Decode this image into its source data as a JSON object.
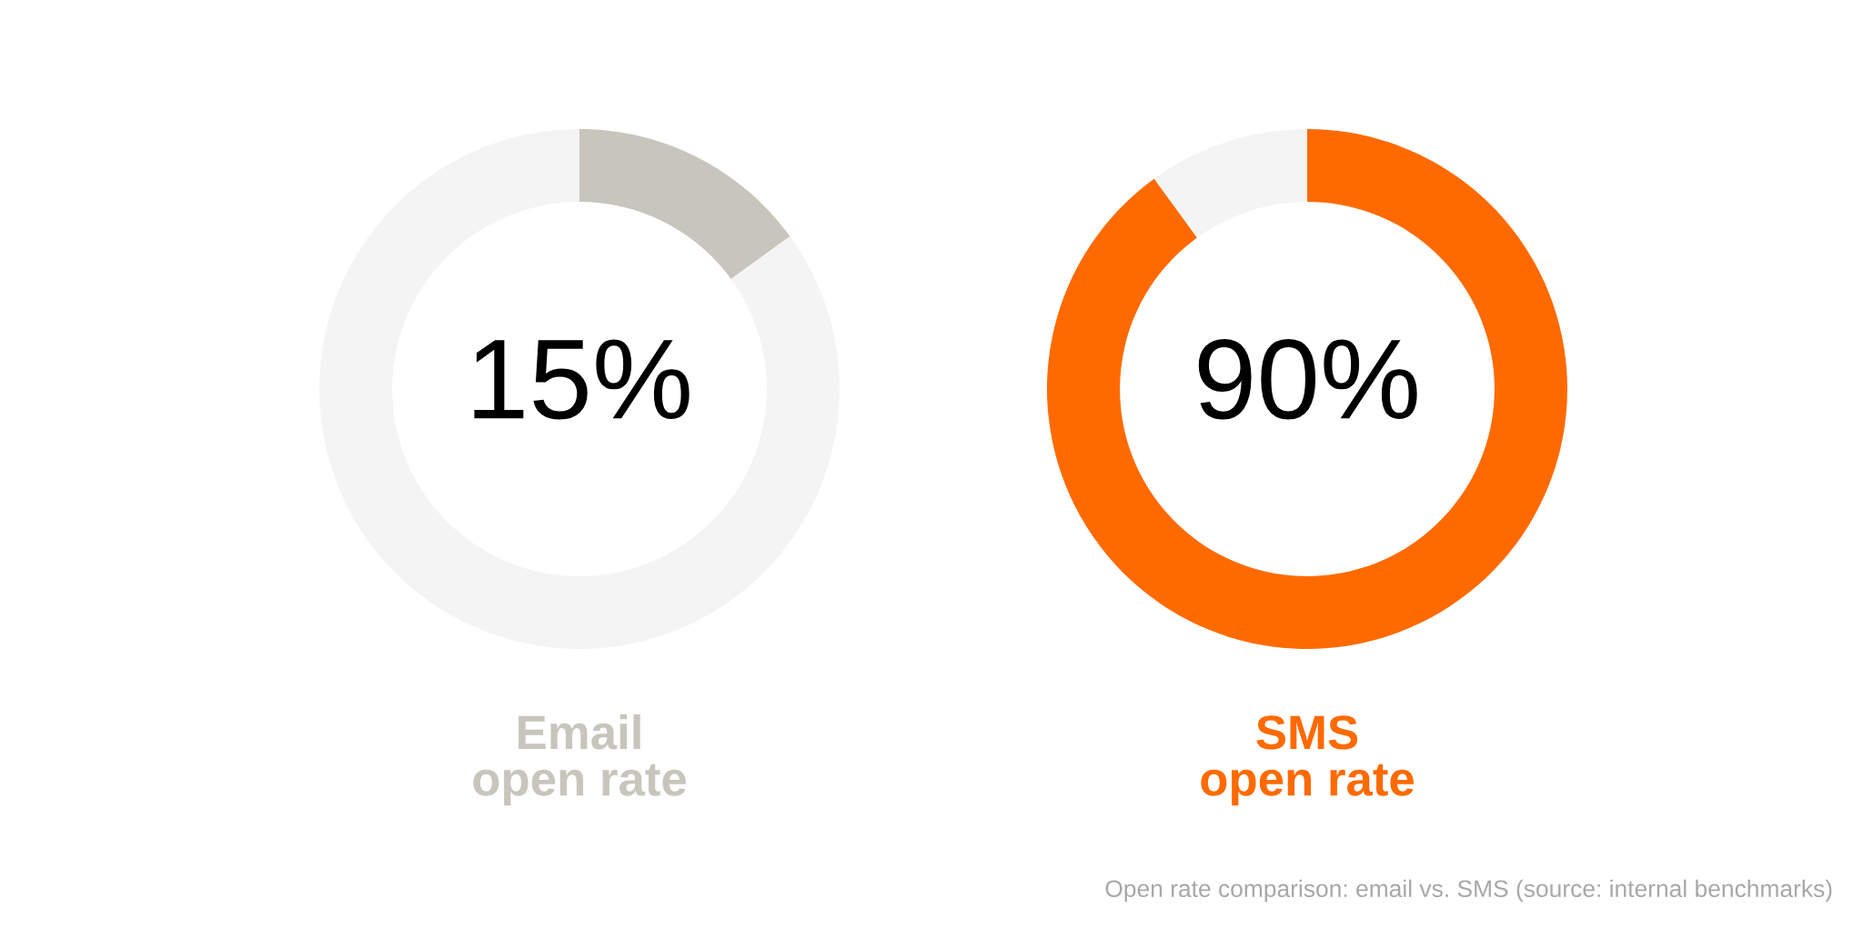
{
  "chart_data": [
    {
      "type": "donut",
      "title": "Email\nopen rate",
      "categories": [
        null,
        null
      ],
      "values": [
        15,
        85
      ],
      "colors": [
        "#c8c5bd",
        "#f4f4f4"
      ],
      "value_labels": [
        "15%",
        null
      ]
    },
    {
      "type": "donut",
      "title": "SMS\nopen rate",
      "categories": [
        null,
        null
      ],
      "values": [
        90,
        10
      ],
      "colors": [
        "#ff6a00",
        "#f4f4f4"
      ],
      "value_labels": [
        "90%",
        null
      ],
      "annotations": [
        "Open rate comparison: email vs. SMS (source: internal benchmarks)"
      ]
    }
  ]
}
